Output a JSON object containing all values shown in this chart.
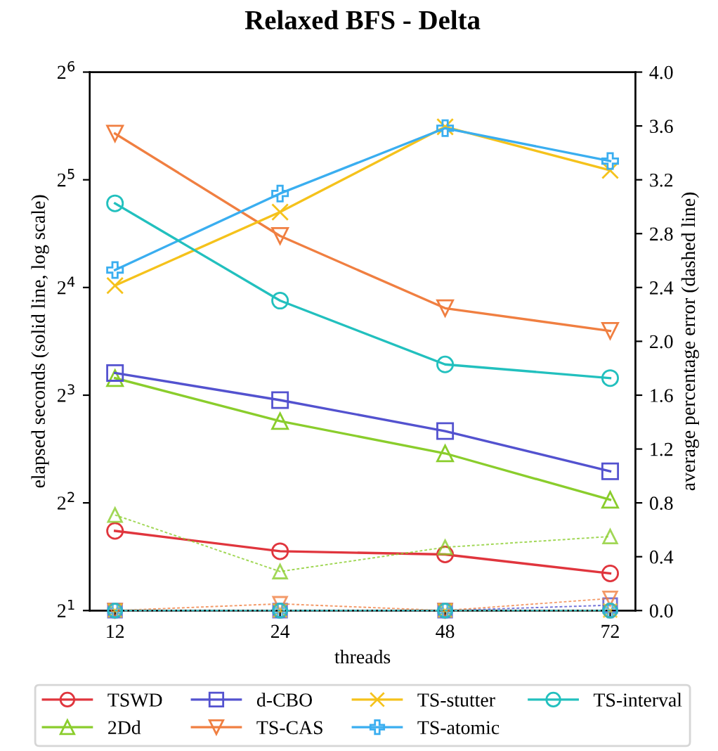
{
  "chart_data": {
    "type": "line",
    "title": "Relaxed BFS - Delta",
    "xlabel": "threads",
    "ylabel": "elapsed seconds (solid line, log scale)",
    "y2label": "average percentage error (dashed line)",
    "categories": [
      "12",
      "24",
      "48",
      "72"
    ],
    "log": "y",
    "ylim": [
      2,
      64
    ],
    "yticks": [
      {
        "value": 2,
        "label": "2$^{1}$"
      },
      {
        "value": 4,
        "label": "2$^{2}$"
      },
      {
        "value": 8,
        "label": "2$^{3}$"
      },
      {
        "value": 16,
        "label": "2$^{4}$"
      },
      {
        "value": 32,
        "label": "2$^{5}$"
      },
      {
        "value": 64,
        "label": "2$^{6}$"
      }
    ],
    "y2lim": [
      0,
      4.0
    ],
    "y2ticks": [
      {
        "value": 0,
        "label": "0.0"
      },
      {
        "value": 0.4,
        "label": "0.4"
      },
      {
        "value": 0.8,
        "label": "0.8"
      },
      {
        "value": 1.2,
        "label": "1.2"
      },
      {
        "value": 1.6,
        "label": "1.6"
      },
      {
        "value": 2.0,
        "label": "2.0"
      },
      {
        "value": 2.4,
        "label": "2.4"
      },
      {
        "value": 2.8,
        "label": "2.8"
      },
      {
        "value": 3.2,
        "label": "3.2"
      },
      {
        "value": 3.6,
        "label": "3.6"
      },
      {
        "value": 4.0,
        "label": "4.0"
      }
    ],
    "grid": false,
    "legend": "bottom",
    "series": [
      {
        "name": "TSWD",
        "color": "#e0353d",
        "marker": "circle",
        "line_style": "solid",
        "values": [
          3.34,
          2.93,
          2.87,
          2.54
        ]
      },
      {
        "name": "2Dd",
        "color": "#8acd2c",
        "marker": "triangle",
        "line_style": "solid",
        "values": [
          8.93,
          6.77,
          5.5,
          4.08
        ]
      },
      {
        "name": "d-CBO",
        "color": "#5352cf",
        "marker": "square",
        "line_style": "solid",
        "values": [
          9.23,
          7.75,
          6.35,
          4.9
        ]
      },
      {
        "name": "TS-CAS",
        "color": "#f07f41",
        "marker": "triangle_down",
        "line_style": "solid",
        "values": [
          43.1,
          22.3,
          14.0,
          12.1
        ]
      },
      {
        "name": "TS-stutter",
        "color": "#f5c21b",
        "marker": "x",
        "line_style": "solid",
        "values": [
          16.2,
          26.0,
          45.0,
          34.0
        ]
      },
      {
        "name": "TS-atomic",
        "color": "#3aaef0",
        "marker": "plus",
        "line_style": "solid",
        "values": [
          17.9,
          29.3,
          44.6,
          36.1
        ]
      },
      {
        "name": "TS-interval",
        "color": "#22c0be",
        "marker": "circle",
        "line_style": "solid",
        "values": [
          27.5,
          14.7,
          9.75,
          8.93
        ]
      },
      {
        "axis": "y2",
        "color": "#e0353d",
        "marker": "circle",
        "line_style": "dashed",
        "values": [
          0,
          0,
          0,
          0
        ]
      },
      {
        "axis": "y2",
        "color": "#8acd2c",
        "marker": "triangle",
        "line_style": "dashed",
        "values": [
          0.71,
          0.29,
          0.47,
          0.55
        ]
      },
      {
        "axis": "y2",
        "color": "#5352cf",
        "marker": "square",
        "line_style": "dashed",
        "values": [
          0,
          0,
          0,
          0.04
        ]
      },
      {
        "axis": "y2",
        "color": "#f07f41",
        "marker": "triangle_down",
        "line_style": "dashed",
        "values": [
          0,
          0.05,
          0,
          0.09
        ]
      },
      {
        "axis": "y2",
        "color": "#f5c21b",
        "marker": "x",
        "line_style": "dashed",
        "values": [
          0,
          0,
          0,
          0
        ]
      },
      {
        "axis": "y2",
        "color": "#3aaef0",
        "marker": "plus",
        "line_style": "dashed",
        "values": [
          0,
          0,
          0,
          0
        ]
      },
      {
        "axis": "y2",
        "color": "#22c0be",
        "marker": "circle",
        "line_style": "dashed",
        "values": [
          0,
          0,
          0,
          0
        ]
      }
    ]
  }
}
